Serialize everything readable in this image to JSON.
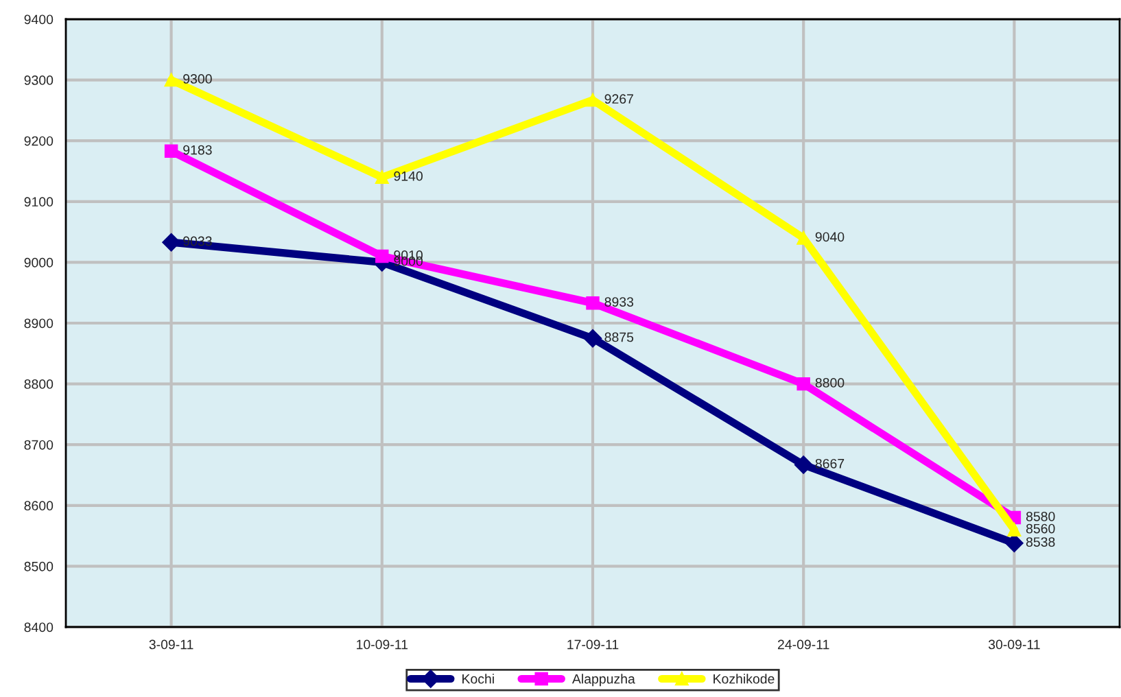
{
  "chart_data": {
    "type": "line",
    "categories": [
      "3-09-11",
      "10-09-11",
      "17-09-11",
      "24-09-11",
      "30-09-11"
    ],
    "series": [
      {
        "name": "Kochi",
        "color": "#000080",
        "marker": "diamond",
        "values": [
          9033,
          9000,
          8875,
          8667,
          8538
        ]
      },
      {
        "name": "Alappuzha",
        "color": "#ff00ff",
        "marker": "square",
        "values": [
          9183,
          9010,
          8933,
          8800,
          8580
        ]
      },
      {
        "name": "Kozhikode",
        "color": "#ffff00",
        "marker": "triangle",
        "values": [
          9300,
          9140,
          9267,
          9040,
          8560
        ]
      }
    ],
    "ylim": [
      8400,
      9400
    ],
    "yticks": [
      8400,
      8500,
      8600,
      8700,
      8800,
      8900,
      9000,
      9100,
      9200,
      9300,
      9400
    ],
    "grid": true,
    "data_labels": true,
    "legend": "bottom",
    "line_style": "solid"
  }
}
